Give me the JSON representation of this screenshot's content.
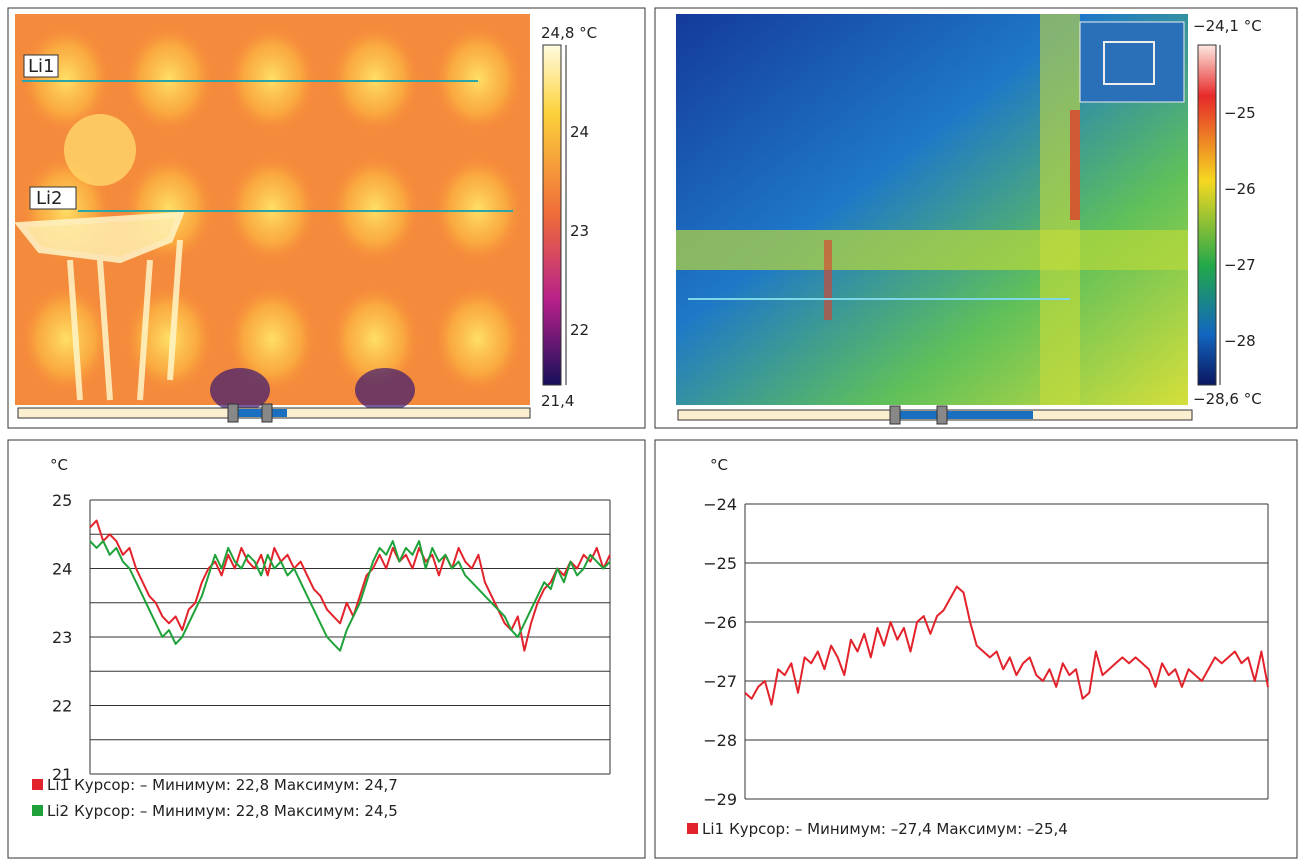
{
  "thermograms": [
    {
      "scale_max": "24,8 °C",
      "scale_ticks": [
        "24",
        "23",
        "22"
      ],
      "scale_min": "21,4",
      "lines": [
        "Li1",
        "Li2"
      ]
    },
    {
      "scale_max": "−24,1 °C",
      "scale_ticks": [
        "−25",
        "−26",
        "−27",
        "−28"
      ],
      "scale_min": "−28,6 °C"
    }
  ],
  "chart_data": [
    {
      "type": "line",
      "y_unit": "°C",
      "ylim": [
        21,
        25
      ],
      "yticks": [
        21,
        22,
        23,
        24,
        25
      ],
      "minor_yticks": [
        21.5,
        22.5,
        23.5,
        24.5
      ],
      "grid": true,
      "series": [
        {
          "name": "Li1",
          "stats": "Курсор: – Минимум: 22,8 Максимум: 24,7",
          "color": "#e3232b",
          "values": [
            24.6,
            24.7,
            24.4,
            24.5,
            24.4,
            24.2,
            24.3,
            24.0,
            23.8,
            23.6,
            23.5,
            23.3,
            23.2,
            23.3,
            23.1,
            23.4,
            23.5,
            23.8,
            24.0,
            24.1,
            23.9,
            24.2,
            24.0,
            24.3,
            24.1,
            24.0,
            24.2,
            23.9,
            24.3,
            24.1,
            24.2,
            24.0,
            24.1,
            23.9,
            23.7,
            23.6,
            23.4,
            23.3,
            23.2,
            23.5,
            23.3,
            23.6,
            23.9,
            24.0,
            24.2,
            24.0,
            24.3,
            24.1,
            24.2,
            24.0,
            24.3,
            24.1,
            24.2,
            23.9,
            24.2,
            24.0,
            24.3,
            24.1,
            24.0,
            24.2,
            23.8,
            23.6,
            23.4,
            23.2,
            23.1,
            23.3,
            22.8,
            23.2,
            23.5,
            23.7,
            23.8,
            24.0,
            23.9,
            24.1,
            24.0,
            24.2,
            24.1,
            24.3,
            24.0,
            24.2
          ]
        },
        {
          "name": "Li2",
          "stats": "Курсор: – Минимум: 22,8 Максимум: 24,5",
          "color": "#1fa23a",
          "values": [
            24.4,
            24.3,
            24.4,
            24.2,
            24.3,
            24.1,
            24.0,
            23.8,
            23.6,
            23.4,
            23.2,
            23.0,
            23.1,
            22.9,
            23.0,
            23.2,
            23.4,
            23.6,
            23.9,
            24.2,
            24.0,
            24.3,
            24.1,
            24.0,
            24.2,
            24.1,
            23.9,
            24.2,
            24.0,
            24.1,
            23.9,
            24.0,
            23.8,
            23.6,
            23.4,
            23.2,
            23.0,
            22.9,
            22.8,
            23.1,
            23.3,
            23.5,
            23.8,
            24.1,
            24.3,
            24.2,
            24.4,
            24.1,
            24.3,
            24.2,
            24.4,
            24.0,
            24.3,
            24.1,
            24.2,
            24.0,
            24.1,
            23.9,
            23.8,
            23.7,
            23.6,
            23.5,
            23.4,
            23.3,
            23.1,
            23.0,
            23.2,
            23.4,
            23.6,
            23.8,
            23.7,
            24.0,
            23.8,
            24.1,
            23.9,
            24.0,
            24.2,
            24.1,
            24.0,
            24.1
          ]
        }
      ]
    },
    {
      "type": "line",
      "y_unit": "°C",
      "ylim": [
        -29,
        -24
      ],
      "yticks": [
        {
          "value": -29,
          "label": "−29"
        },
        {
          "value": -28,
          "label": "−28"
        },
        {
          "value": -27,
          "label": "−27"
        },
        {
          "value": -26,
          "label": "−26"
        },
        {
          "value": -25,
          "label": "−25"
        },
        {
          "value": -24,
          "label": "−24"
        }
      ],
      "grid": true,
      "series": [
        {
          "name": "Li1",
          "stats": "Курсор: – Минимум: –27,4 Максимум: –25,4",
          "color": "#e3232b",
          "values": [
            -27.2,
            -27.3,
            -27.1,
            -27.0,
            -27.4,
            -26.8,
            -26.9,
            -26.7,
            -27.2,
            -26.6,
            -26.7,
            -26.5,
            -26.8,
            -26.4,
            -26.6,
            -26.9,
            -26.3,
            -26.5,
            -26.2,
            -26.6,
            -26.1,
            -26.4,
            -26.0,
            -26.3,
            -26.1,
            -26.5,
            -26.0,
            -25.9,
            -26.2,
            -25.9,
            -25.8,
            -25.6,
            -25.4,
            -25.5,
            -26.0,
            -26.4,
            -26.5,
            -26.6,
            -26.5,
            -26.8,
            -26.6,
            -26.9,
            -26.7,
            -26.6,
            -26.9,
            -27.0,
            -26.8,
            -27.1,
            -26.7,
            -26.9,
            -26.8,
            -27.3,
            -27.2,
            -26.5,
            -26.9,
            -26.8,
            -26.7,
            -26.6,
            -26.7,
            -26.6,
            -26.7,
            -26.8,
            -27.1,
            -26.7,
            -26.9,
            -26.8,
            -27.1,
            -26.8,
            -26.9,
            -27.0,
            -26.8,
            -26.6,
            -26.7,
            -26.6,
            -26.5,
            -26.7,
            -26.6,
            -27.0,
            -26.5,
            -27.1
          ]
        }
      ]
    }
  ]
}
